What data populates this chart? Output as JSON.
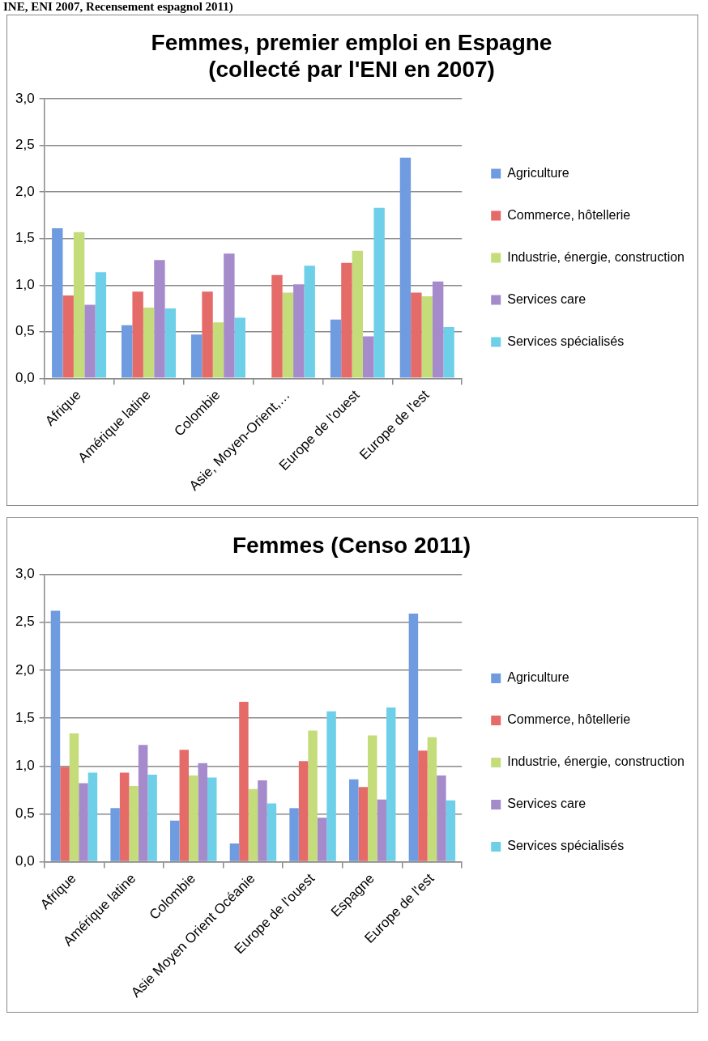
{
  "chart_data": [
    {
      "type": "bar",
      "title": "Femmes, premier emploi en Espagne (collecté par l'ENI en 2007)",
      "annotations": [
        "INE, ENI 2007, Recensement espagnol 2011)"
      ],
      "categories": [
        "Afrique",
        "Amérique latine",
        "Colombie",
        "Asie, Moyen-Orient,…",
        "Europe de l'ouest",
        "Europe de l'est"
      ],
      "series": [
        {
          "name": "Agriculture",
          "color": "#6f9be0",
          "values": [
            1.61,
            0.57,
            0.47,
            null,
            0.63,
            2.37
          ]
        },
        {
          "name": "Commerce, hôtellerie",
          "color": "#e56b68",
          "values": [
            0.89,
            0.93,
            0.93,
            1.11,
            1.24,
            0.92
          ]
        },
        {
          "name": "Industrie, énergie, construction",
          "color": "#c4dc7a",
          "values": [
            1.57,
            0.76,
            0.6,
            0.92,
            1.37,
            0.88
          ]
        },
        {
          "name": "Services care",
          "color": "#a58bcc",
          "values": [
            0.79,
            1.27,
            1.34,
            1.01,
            0.45,
            1.04
          ]
        },
        {
          "name": "Services spécialisés",
          "color": "#6dd0e8",
          "values": [
            1.14,
            0.75,
            0.65,
            1.21,
            1.83,
            0.55
          ]
        }
      ],
      "ylim": [
        0,
        3
      ],
      "yticks": [
        {
          "value": 0,
          "label": "0,0"
        },
        {
          "value": 0.5,
          "label": "0,5"
        },
        {
          "value": 1,
          "label": "1,0"
        },
        {
          "value": 1.5,
          "label": "1,5"
        },
        {
          "value": 2,
          "label": "2,0"
        },
        {
          "value": 2.5,
          "label": "2,5"
        },
        {
          "value": 3,
          "label": "3,0"
        }
      ],
      "grid": "y",
      "legend": "right"
    },
    {
      "type": "bar",
      "title": "Femmes (Censo 2011)",
      "categories": [
        "Afrique",
        "Amérique latine",
        "Colombie",
        "Asie Moyen Orient Océanie",
        "Europe de l'ouest",
        "Espagne",
        "Europe de l'est"
      ],
      "series": [
        {
          "name": "Agriculture",
          "color": "#6f9be0",
          "values": [
            2.62,
            0.56,
            0.43,
            0.19,
            0.56,
            0.86,
            2.59
          ]
        },
        {
          "name": "Commerce, hôtellerie",
          "color": "#e56b68",
          "values": [
            0.99,
            0.93,
            1.17,
            1.67,
            1.05,
            0.78,
            1.16
          ]
        },
        {
          "name": "Industrie, énergie, construction",
          "color": "#c4dc7a",
          "values": [
            1.34,
            0.79,
            0.9,
            0.76,
            1.37,
            1.32,
            1.3
          ]
        },
        {
          "name": "Services care",
          "color": "#a58bcc",
          "values": [
            0.82,
            1.22,
            1.03,
            0.85,
            0.46,
            0.65,
            0.9
          ]
        },
        {
          "name": "Services spécialisés",
          "color": "#6dd0e8",
          "values": [
            0.93,
            0.91,
            0.88,
            0.61,
            1.57,
            1.61,
            0.64
          ]
        }
      ],
      "ylim": [
        0,
        3
      ],
      "yticks": [
        {
          "value": 0,
          "label": "0,0"
        },
        {
          "value": 0.5,
          "label": "0,5"
        },
        {
          "value": 1,
          "label": "1,0"
        },
        {
          "value": 1.5,
          "label": "1,5"
        },
        {
          "value": 2,
          "label": "2,0"
        },
        {
          "value": 2.5,
          "label": "2,5"
        },
        {
          "value": 3,
          "label": "3,0"
        }
      ],
      "grid": "y",
      "legend": "right"
    }
  ]
}
